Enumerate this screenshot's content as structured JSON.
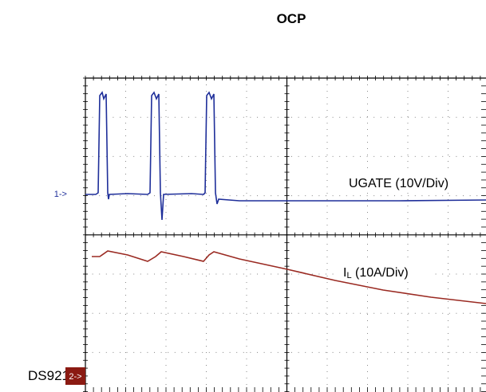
{
  "title": "OCP",
  "traces": [
    {
      "marker": "1->",
      "label": "UGATE (10V/Div)"
    },
    {
      "marker": "2->",
      "label_main": "I",
      "label_sub": "L",
      "label_rest": " (10A/Div)"
    }
  ],
  "side_text": "DS921"
}
